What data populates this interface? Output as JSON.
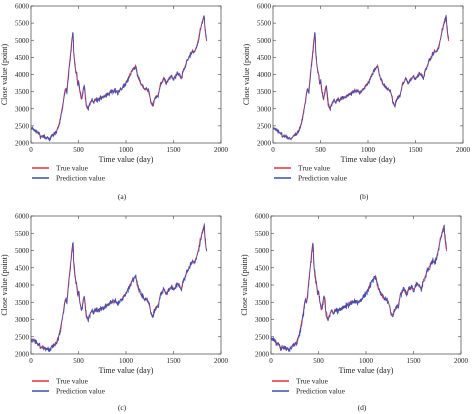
{
  "chart_data": [
    {
      "type": "line",
      "panel_label": "(a)",
      "xlabel": "Time value (day)",
      "ylabel": "Close value (point)",
      "xlim": [
        0,
        2000
      ],
      "ylim": [
        2000,
        6000
      ],
      "xticks": [
        "0",
        "500",
        "1000",
        "1500",
        "2000"
      ],
      "yticks": [
        "2000",
        "2500",
        "3000",
        "3500",
        "4000",
        "4500",
        "5000",
        "5500",
        "6000"
      ],
      "legend": "bottom-left-outside",
      "grid": false,
      "series": [
        {
          "name": "True value",
          "color": "#e8303a"
        },
        {
          "name": "Prediction value",
          "color": "#3c4fb0"
        }
      ]
    },
    {
      "type": "line",
      "panel_label": "(b)",
      "xlabel": "Time value (day)",
      "ylabel": "Close value (point)",
      "xlim": [
        0,
        2000
      ],
      "ylim": [
        2000,
        6000
      ],
      "xticks": [
        "0",
        "500",
        "1000",
        "1500",
        "2000"
      ],
      "yticks": [
        "2000",
        "2500",
        "3000",
        "3500",
        "4000",
        "4500",
        "5000",
        "5500",
        "6000"
      ],
      "legend": "bottom-left-outside",
      "grid": false,
      "series": [
        {
          "name": "True value",
          "color": "#e8303a"
        },
        {
          "name": "Prediction value",
          "color": "#3c4fb0"
        }
      ]
    },
    {
      "type": "line",
      "panel_label": "(c)",
      "xlabel": "Time value (day)",
      "ylabel": "Close value (point)",
      "xlim": [
        0,
        2000
      ],
      "ylim": [
        2000,
        6000
      ],
      "xticks": [
        "0",
        "500",
        "1000",
        "1500",
        "2000"
      ],
      "yticks": [
        "2000",
        "2500",
        "3000",
        "3500",
        "4000",
        "4500",
        "5000",
        "5500",
        "6000"
      ],
      "legend": "bottom-left-outside",
      "grid": false,
      "series": [
        {
          "name": "True value",
          "color": "#e8303a"
        },
        {
          "name": "Prediction value",
          "color": "#3c4fb0"
        }
      ]
    },
    {
      "type": "line",
      "panel_label": "(d)",
      "xlabel": "Time value (day)",
      "ylabel": "Close value (point)",
      "xlim": [
        0,
        2000
      ],
      "ylim": [
        2000,
        6000
      ],
      "xticks": [
        "0",
        "500",
        "1000",
        "1500",
        "2000"
      ],
      "yticks": [
        "2000",
        "2500",
        "3000",
        "3500",
        "4000",
        "4500",
        "5000",
        "5500",
        "6000"
      ],
      "legend": "bottom-left-outside",
      "grid": false,
      "series": [
        {
          "name": "True value",
          "color": "#e8303a"
        },
        {
          "name": "Prediction value",
          "color": "#3c4fb0"
        }
      ]
    }
  ],
  "series_points": {
    "x": [
      0,
      20,
      50,
      80,
      100,
      130,
      160,
      190,
      210,
      240,
      270,
      300,
      320,
      340,
      360,
      375,
      390,
      400,
      410,
      420,
      430,
      440,
      450,
      460,
      470,
      480,
      490,
      500,
      515,
      530,
      545,
      560,
      580,
      600,
      620,
      640,
      660,
      680,
      700,
      730,
      760,
      790,
      820,
      850,
      880,
      910,
      940,
      970,
      1000,
      1020,
      1040,
      1060,
      1080,
      1100,
      1110,
      1120,
      1140,
      1160,
      1180,
      1200,
      1220,
      1240,
      1260,
      1280,
      1300,
      1320,
      1340,
      1360,
      1380,
      1400,
      1420,
      1440,
      1460,
      1480,
      1500,
      1520,
      1540,
      1560,
      1580,
      1600,
      1620,
      1640,
      1660,
      1680,
      1700,
      1720,
      1740,
      1760,
      1780,
      1800,
      1810,
      1820,
      1830,
      1840,
      1850
    ],
    "y": [
      2450,
      2400,
      2330,
      2300,
      2180,
      2200,
      2150,
      2120,
      2200,
      2250,
      2350,
      2600,
      2900,
      3200,
      3600,
      3500,
      3900,
      4200,
      4450,
      4700,
      5000,
      5250,
      4600,
      4300,
      4100,
      4000,
      3700,
      3800,
      3500,
      3250,
      3500,
      3650,
      3100,
      3000,
      3150,
      3250,
      3200,
      3300,
      3250,
      3300,
      3350,
      3400,
      3450,
      3500,
      3550,
      3450,
      3550,
      3650,
      3750,
      3850,
      4000,
      4100,
      4200,
      4250,
      4100,
      3950,
      3850,
      3700,
      3650,
      3600,
      3550,
      3500,
      3200,
      3100,
      3300,
      3350,
      3400,
      3700,
      3800,
      3900,
      3750,
      3850,
      3900,
      3950,
      3850,
      3950,
      4050,
      4000,
      3900,
      4100,
      4200,
      4400,
      4500,
      4600,
      4700,
      4650,
      4800,
      5000,
      5300,
      5500,
      5600,
      5700,
      5400,
      5100,
      5000
    ]
  }
}
